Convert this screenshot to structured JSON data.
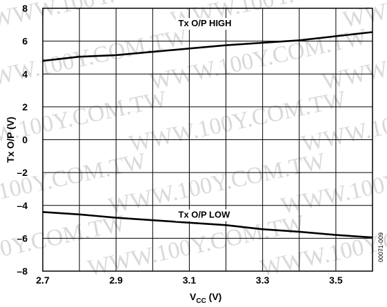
{
  "chart_data": {
    "type": "line",
    "xlabel_main": "V",
    "xlabel_sub": "CC",
    "xlabel_unit": " (V)",
    "ylabel": "Tx O/P (V)",
    "xlim": [
      2.7,
      3.6
    ],
    "ylim": [
      -8,
      8
    ],
    "x_ticks": [
      2.7,
      2.8,
      2.9,
      3.0,
      3.1,
      3.2,
      3.3,
      3.4,
      3.5,
      3.6
    ],
    "x_tick_labels": [
      {
        "value": 2.7,
        "text": "2.7"
      },
      {
        "value": 2.9,
        "text": "2.9"
      },
      {
        "value": 3.1,
        "text": "3.1"
      },
      {
        "value": 3.3,
        "text": "3.3"
      },
      {
        "value": 3.5,
        "text": "3.5"
      }
    ],
    "y_ticks": [
      -8,
      -6,
      -4,
      -2,
      0,
      2,
      4,
      6,
      8
    ],
    "y_tick_labels": [
      "–8",
      "–6",
      "–4",
      "–2",
      "0",
      "2",
      "4",
      "6",
      "8"
    ],
    "grid": true,
    "series": [
      {
        "name": "Tx O/P HIGH",
        "x": [
          2.7,
          2.8,
          2.9,
          3.0,
          3.1,
          3.2,
          3.3,
          3.4,
          3.5,
          3.6
        ],
        "y": [
          4.8,
          5.05,
          5.15,
          5.35,
          5.55,
          5.75,
          5.9,
          6.05,
          6.3,
          6.55
        ]
      },
      {
        "name": "Tx O/P LOW",
        "x": [
          2.7,
          2.8,
          2.9,
          3.0,
          3.1,
          3.2,
          3.3,
          3.4,
          3.5,
          3.6
        ],
        "y": [
          -4.4,
          -4.55,
          -4.75,
          -4.9,
          -5.05,
          -5.2,
          -5.45,
          -5.6,
          -5.8,
          -5.95
        ]
      }
    ]
  },
  "figure_id": "00071-009",
  "watermark": "WWW.100Y.COM.TW"
}
